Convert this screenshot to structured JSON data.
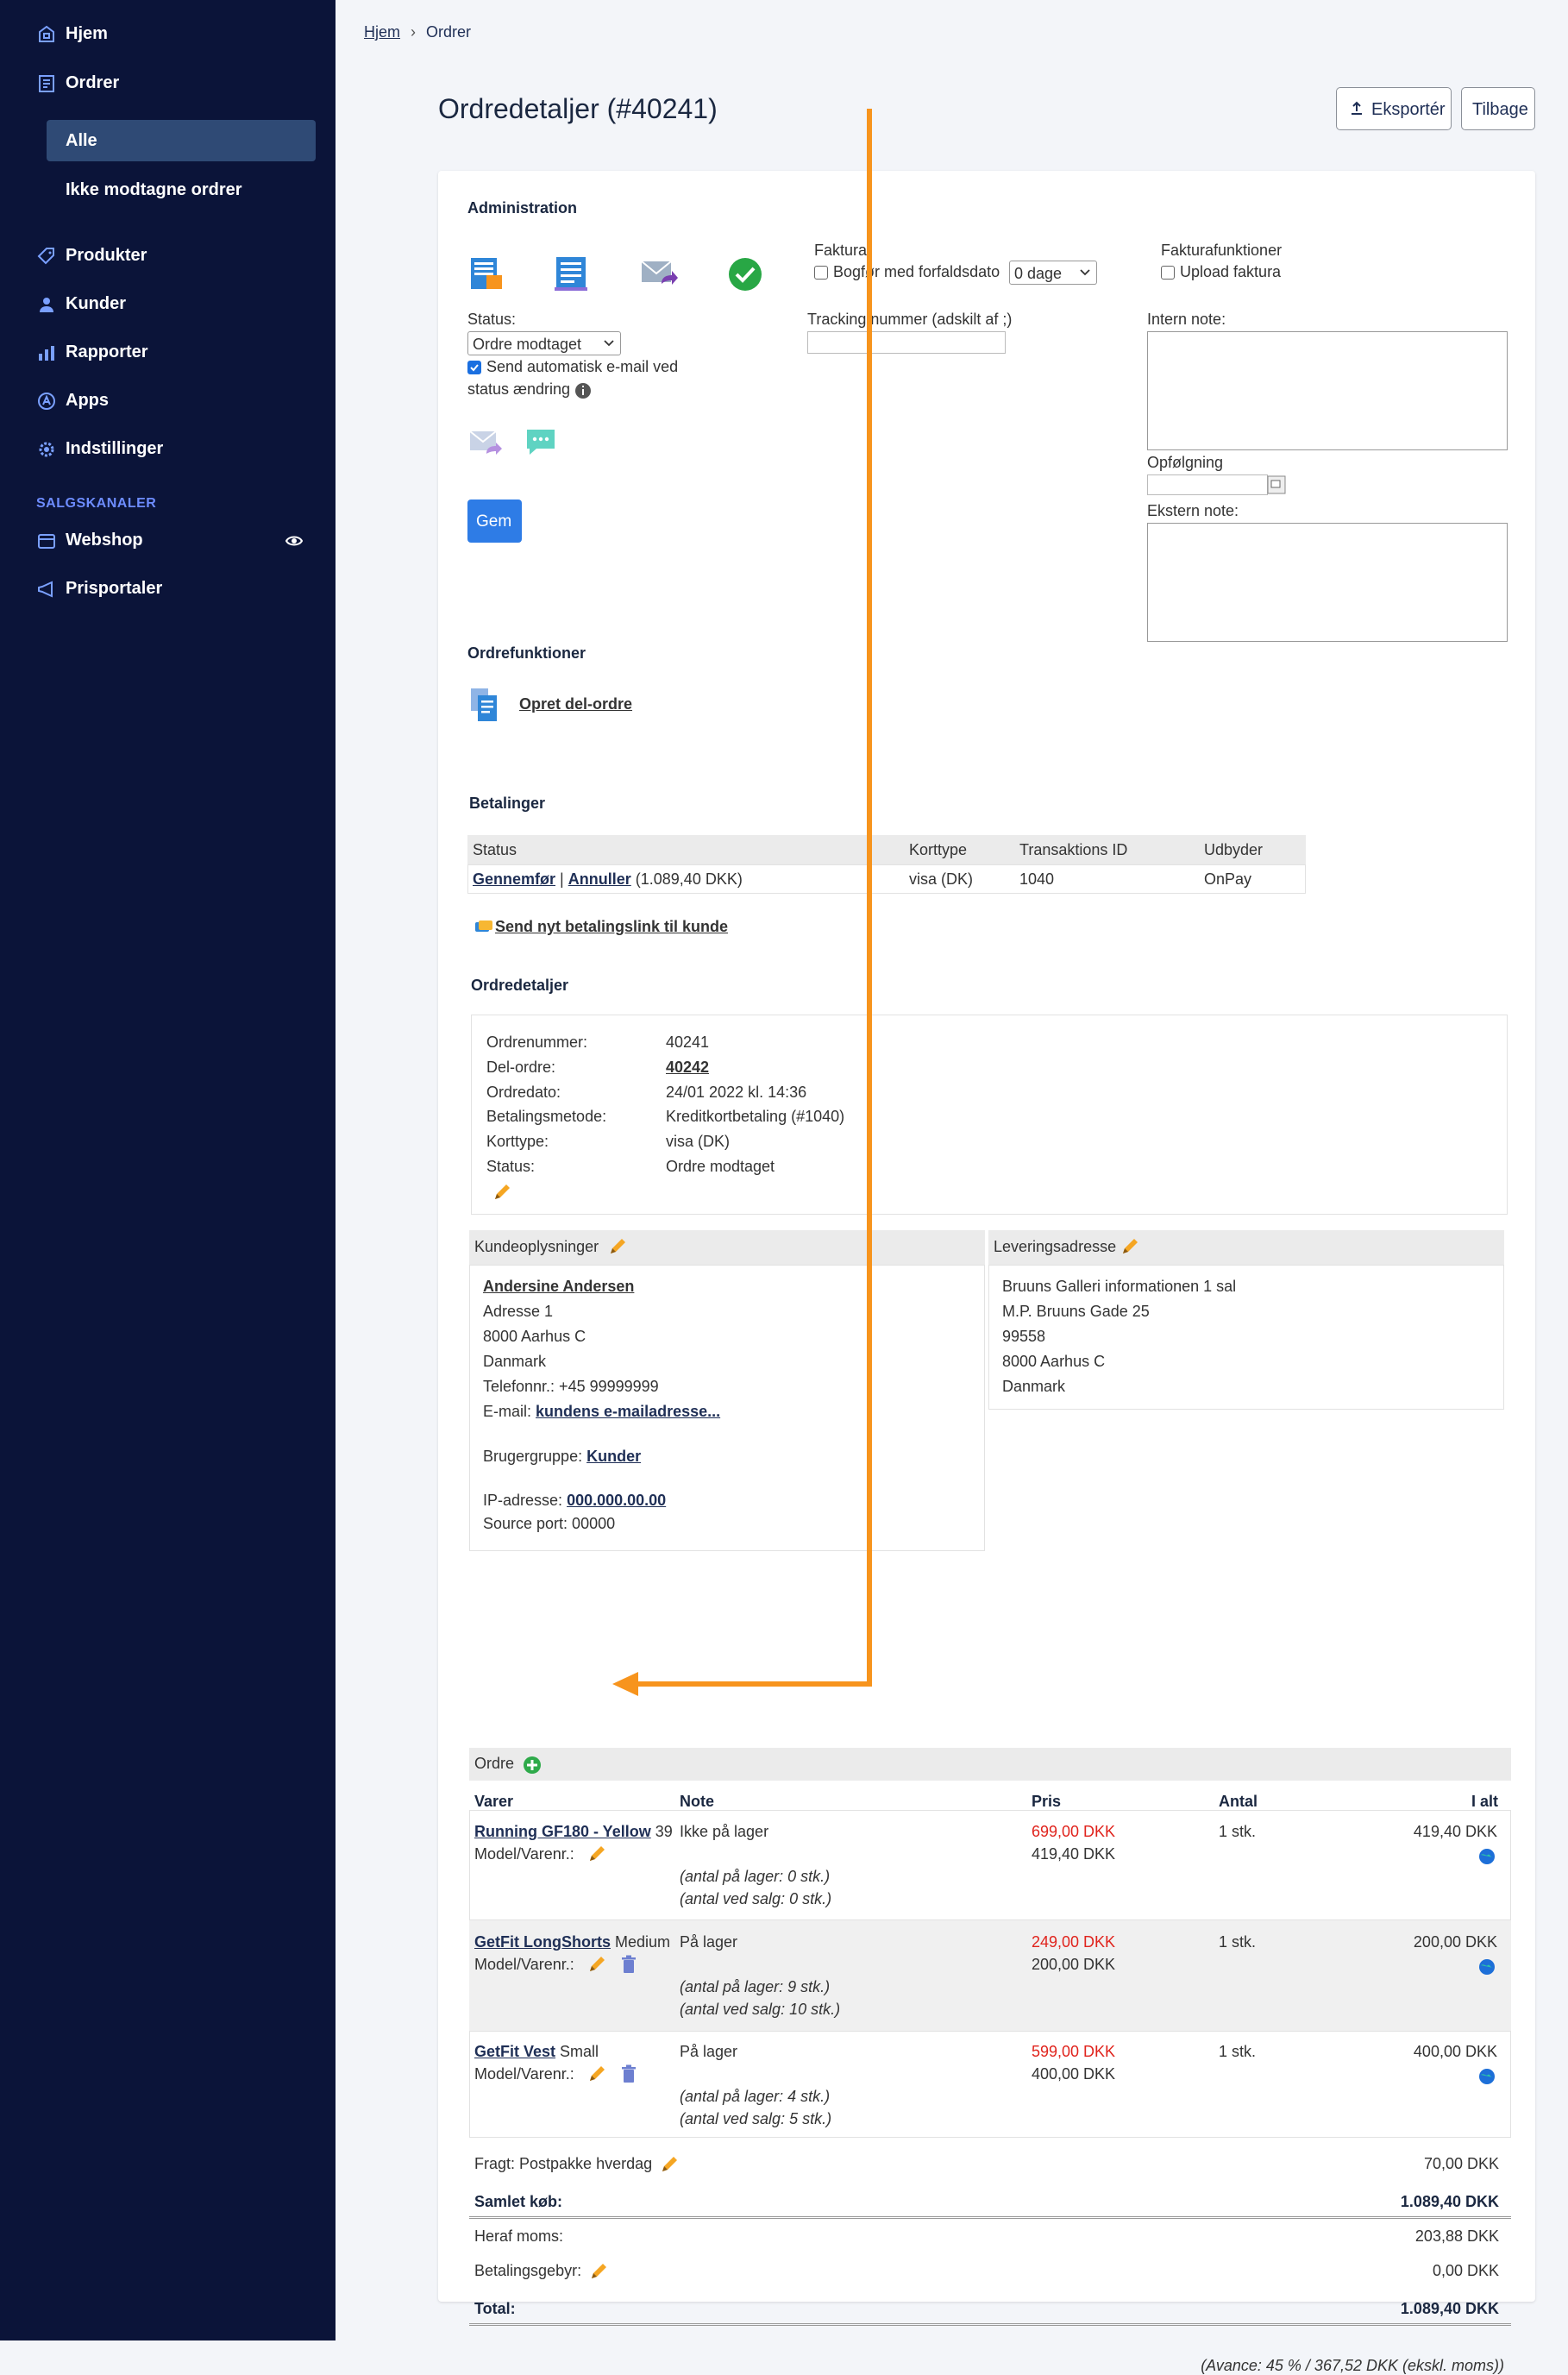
{
  "sidebar": {
    "items": [
      {
        "label": "Hjem",
        "icon": "home-icon"
      },
      {
        "label": "Ordrer",
        "icon": "orders-icon"
      },
      {
        "label": "Produkter",
        "icon": "tag-icon"
      },
      {
        "label": "Kunder",
        "icon": "user-icon"
      },
      {
        "label": "Rapporter",
        "icon": "bar-chart-icon"
      },
      {
        "label": "Apps",
        "icon": "apps-icon"
      },
      {
        "label": "Indstillinger",
        "icon": "gear-icon"
      }
    ],
    "sub_items": [
      {
        "label": "Alle",
        "active": true
      },
      {
        "label": "Ikke modtagne ordrer",
        "active": false
      }
    ],
    "section_heading": "SALGSKANALER",
    "channels": [
      {
        "label": "Webshop",
        "icon": "webshop-icon"
      },
      {
        "label": "Prisportaler",
        "icon": "megaphone-icon"
      }
    ]
  },
  "breadcrumb": {
    "home": "Hjem",
    "current": "Ordrer"
  },
  "header": {
    "title": "Ordredetaljer (#40241)",
    "export_label": "Eksportér",
    "back_label": "Tilbage"
  },
  "admin": {
    "heading": "Administration",
    "status_label": "Status:",
    "status_value": "Ordre modtaget",
    "auto_email_label": "Send automatisk e-mail ved",
    "auto_email_label2": "status ændring",
    "auto_email_checked": true,
    "faktura_label": "Faktura:",
    "bogfor_label": "Bogfør med forfaldsdato",
    "due_value": "0 dage",
    "tracking_label": "Tracking nummer (adskilt af ;)",
    "fakturafunk_label": "Fakturafunktioner",
    "upload_label": "Upload faktura",
    "intern_label": "Intern note:",
    "opfolgning_label": "Opfølgning",
    "ekstern_label": "Ekstern note:",
    "save_label": "Gem"
  },
  "order_functions": {
    "heading": "Ordrefunktioner",
    "create_sub": "Opret del-ordre"
  },
  "payments": {
    "heading": "Betalinger",
    "columns": [
      "Status",
      "Korttype",
      "Transaktions ID",
      "Udbyder"
    ],
    "capture": "Gennemfør",
    "sep": "|",
    "cancel": "Annuller",
    "amount": "(1.089,40 DKK)",
    "card": "visa (DK)",
    "txid": "1040",
    "provider": "OnPay",
    "send_link": "Send nyt betalingslink til kunde"
  },
  "details": {
    "heading": "Ordredetaljer",
    "rows": [
      {
        "label": "Ordrenummer:",
        "value": "40241"
      },
      {
        "label": "Del-ordre:",
        "value": "40242"
      },
      {
        "label": "Ordredato:",
        "value": "24/01 2022 kl. 14:36"
      },
      {
        "label": "Betalingsmetode:",
        "value": "Kreditkortbetaling (#1040)"
      },
      {
        "label": "Korttype:",
        "value": "visa (DK)"
      },
      {
        "label": "Status:",
        "value": "Ordre modtaget"
      }
    ]
  },
  "customer": {
    "heading": "Kundeoplysninger",
    "name": "Andersine Andersen",
    "lines": [
      "Adresse 1",
      "8000 Aarhus C",
      "Danmark",
      "Telefonnr.: +45 99999999"
    ],
    "email_label": "E-mail:",
    "email": "kundens e-mailadresse...",
    "group_label": "Brugergruppe:",
    "group": "Kunder",
    "ip_label": "IP-adresse:",
    "ip": "000.000.00.00",
    "source_port": "Source port: 00000"
  },
  "delivery": {
    "heading": "Leveringsadresse",
    "lines": [
      "Bruuns Galleri informationen 1 sal",
      "M.P. Bruuns Gade 25",
      "99558",
      "8000 Aarhus C",
      "Danmark"
    ]
  },
  "order": {
    "heading": "Ordre",
    "columns": [
      "Varer",
      "Note",
      "Pris",
      "Antal",
      "I alt"
    ],
    "items": [
      {
        "name": "Running GF180 - Yellow",
        "variant": "39",
        "model": "Model/Varenr.:",
        "note": "Ikke på lager",
        "stock": "(antal på lager: 0 stk.)",
        "sale": "(antal ved salg: 0 stk.)",
        "price_orig": "699,00 DKK",
        "price": "419,40 DKK",
        "qty": "1 stk.",
        "total": "419,40 DKK"
      },
      {
        "name": "GetFit LongShorts",
        "variant": "Medium",
        "model": "Model/Varenr.:",
        "note": "På lager",
        "stock": "(antal på lager: 9 stk.)",
        "sale": "(antal ved salg: 10 stk.)",
        "price_orig": "249,00 DKK",
        "price": "200,00 DKK",
        "qty": "1 stk.",
        "total": "200,00 DKK"
      },
      {
        "name": "GetFit Vest",
        "variant": "Small",
        "model": "Model/Varenr.:",
        "note": "På lager",
        "stock": "(antal på lager: 4 stk.)",
        "sale": "(antal ved salg: 5 stk.)",
        "price_orig": "599,00 DKK",
        "price": "400,00 DKK",
        "qty": "1 stk.",
        "total": "400,00 DKK"
      }
    ],
    "freight_label": "Fragt: Postpakke hverdag",
    "freight_value": "70,00 DKK",
    "subtotal_label": "Samlet køb:",
    "subtotal_value": "1.089,40 DKK",
    "vat_label": "Heraf moms:",
    "vat_value": "203,88 DKK",
    "fee_label": "Betalingsgebyr:",
    "fee_value": "0,00 DKK",
    "total_label": "Total:",
    "total_value": "1.089,40 DKK",
    "margin": "(Avance: 45 % / 367,52 DKK (ekskl. moms))"
  },
  "colors": {
    "sidebar": "#0b1439",
    "sidebar_active": "#2f4a75",
    "accent": "#2e7ce6",
    "annotation": "#f7941d",
    "price_red": "#e0231c"
  }
}
